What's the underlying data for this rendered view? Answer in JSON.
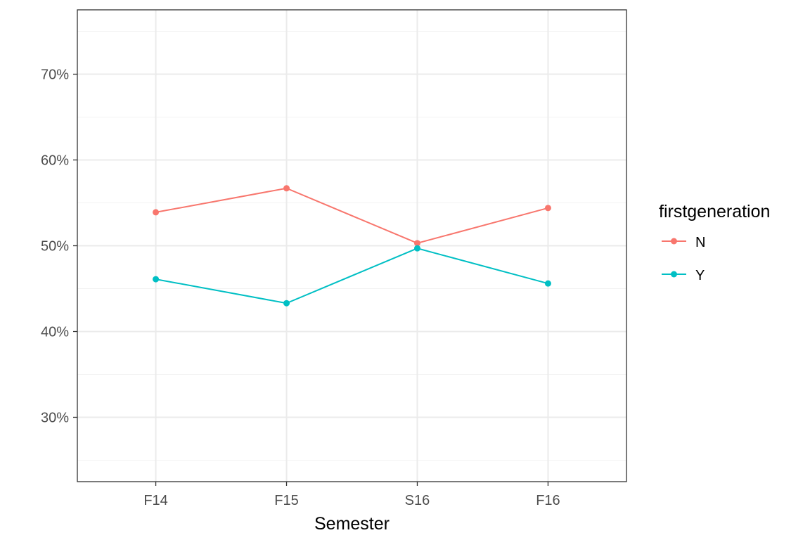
{
  "chart_data": {
    "type": "line",
    "xlabel": "Semester",
    "ylabel": "",
    "categories": [
      "F14",
      "F15",
      "S16",
      "F16"
    ],
    "ylim": [
      0.225,
      0.775
    ],
    "yticks": [
      0.3,
      0.4,
      0.5,
      0.6,
      0.7
    ],
    "ytick_labels": [
      "30%",
      "40%",
      "50%",
      "60%",
      "70%"
    ],
    "grid": true,
    "legend": {
      "title": "firstgeneration",
      "position": "right"
    },
    "series": [
      {
        "name": "N",
        "color": "#f8766d",
        "values": [
          0.539,
          0.567,
          0.503,
          0.544
        ]
      },
      {
        "name": "Y",
        "color": "#00bfc4",
        "values": [
          0.461,
          0.433,
          0.497,
          0.456
        ]
      }
    ]
  }
}
